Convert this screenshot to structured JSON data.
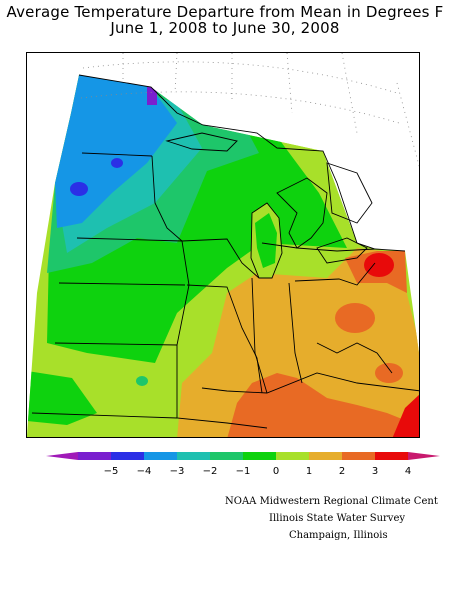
{
  "title_line1": "Average Temperature Departure from Mean in Degrees F",
  "title_line2": "June 1, 2008 to June 30, 2008",
  "legend": {
    "ticks": [
      "−5",
      "−4",
      "−3",
      "−2",
      "−1",
      "0",
      "1",
      "2",
      "3",
      "4"
    ],
    "colors": [
      "#7a1fcf",
      "#2b2fe6",
      "#1596e6",
      "#1ec0b0",
      "#1ec66a",
      "#0ed20e",
      "#a8e02a",
      "#e6ad2c",
      "#e86a24",
      "#e80a0a"
    ],
    "end_low_color": "#a01ab8",
    "end_high_color": "#c8196e"
  },
  "credits": {
    "line1": "NOAA Midwestern Regional Climate Cent",
    "line2": "Illinois State Water Survey",
    "line3": "Champaign, Illinois"
  }
}
